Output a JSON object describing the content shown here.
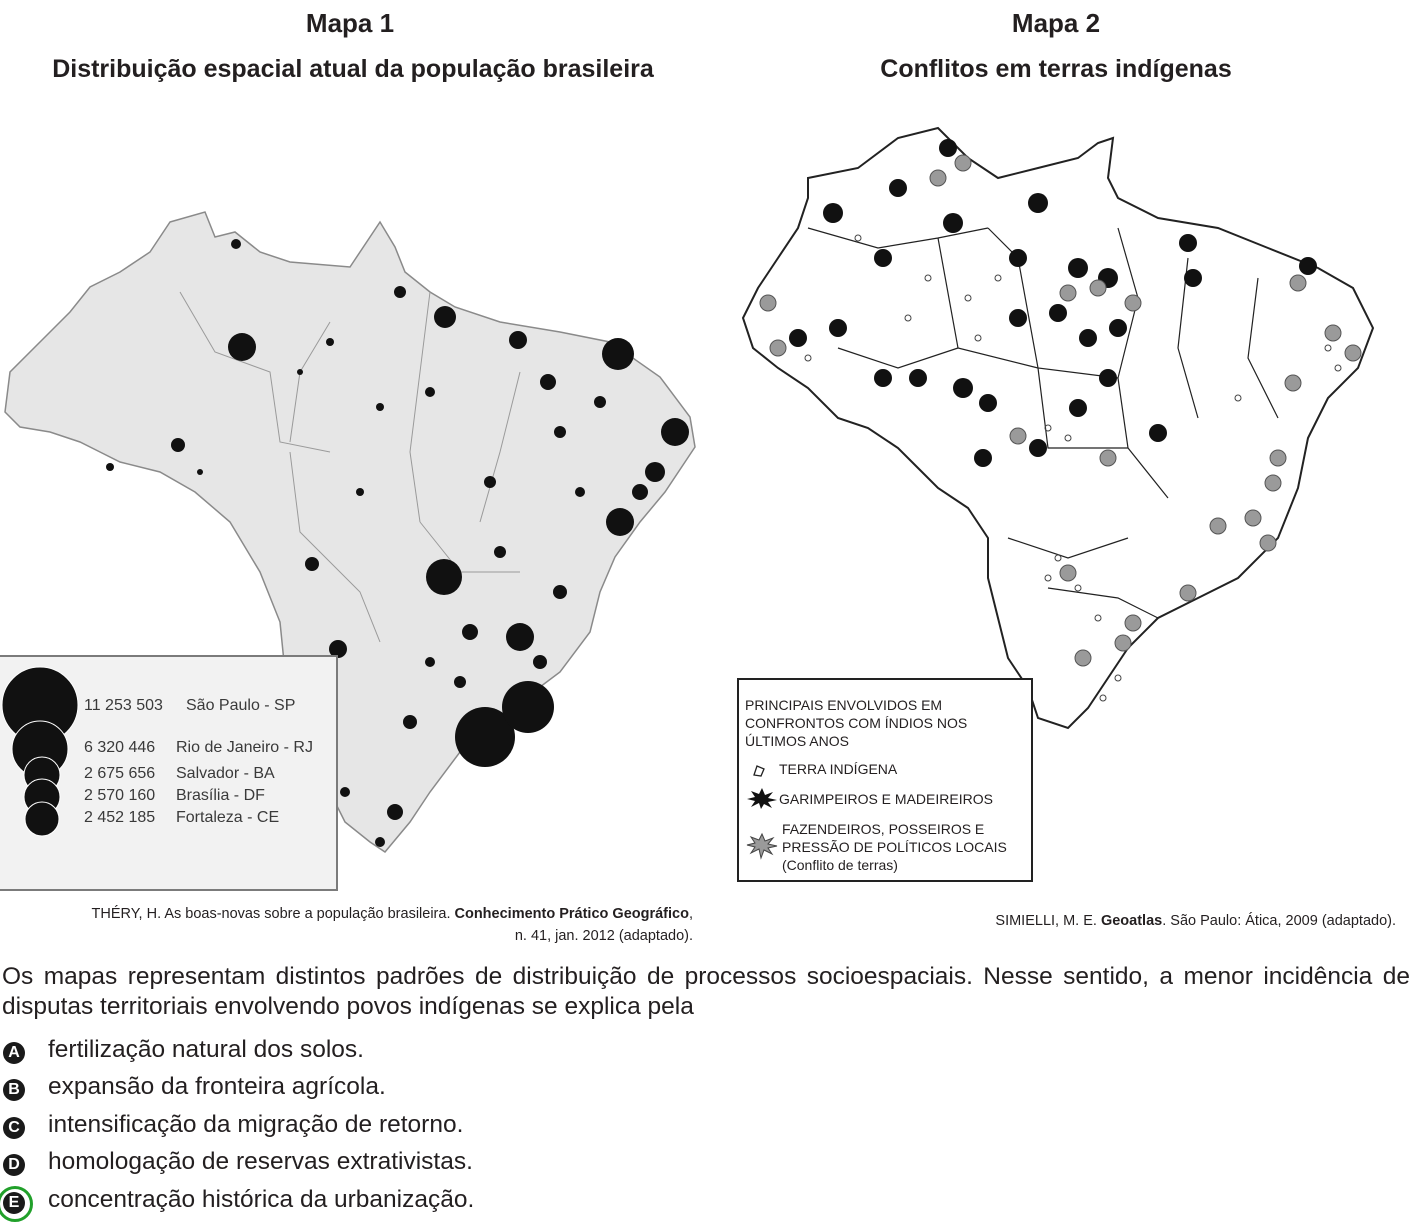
{
  "map1": {
    "title": "Mapa 1",
    "subtitle": "Distribuição espacial atual da população brasileira",
    "legend": [
      {
        "value": "11 253 503",
        "city": "São Paulo - SP"
      },
      {
        "value": "6 320 446",
        "city": "Rio de Janeiro - RJ"
      },
      {
        "value": "2 675 656",
        "city": "Salvador - BA"
      },
      {
        "value": "2 570 160",
        "city": "Brasília - DF"
      },
      {
        "value": "2 452 185",
        "city": "Fortaleza - CE"
      }
    ],
    "source_plain": "THÉRY, H. As boas-novas sobre a população brasileira. ",
    "source_bold": "Conhecimento Prático Geográfico",
    "source_end": ", n. 41, jan. 2012 (adaptado)."
  },
  "map2": {
    "title": "Mapa 2",
    "subtitle": "Conflitos em terras indígenas",
    "legend_title": "PRINCIPAIS ENVOLVIDOS EM CONFRONTOS COM ÍNDIOS NOS ÚLTIMOS ANOS",
    "legend_items": [
      "TERRA INDÍGENA",
      "GARIMPEIROS E MADEIREIROS",
      "FAZENDEIROS, POSSEIROS E PRESSÃO DE POLÍTICOS LOCAIS",
      "(Conflito de terras)"
    ],
    "source_plain": "SIMIELLI, M. E. ",
    "source_bold": "Geoatlas",
    "source_end": ". São Paulo: Ática, 2009 (adaptado)."
  },
  "question": "Os mapas representam distintos padrões de distribuição de processos socioespaciais. Nesse sentido, a menor incidência de disputas territoriais envolvendo povos indígenas se explica pela",
  "options": [
    {
      "letter": "A",
      "text": "fertilização natural dos solos."
    },
    {
      "letter": "B",
      "text": "expansão da fronteira agrícola."
    },
    {
      "letter": "C",
      "text": "intensificação da migração de retorno."
    },
    {
      "letter": "D",
      "text": "homologação de reservas extrativistas."
    },
    {
      "letter": "E",
      "text": "concentração histórica da urbanização."
    }
  ],
  "colors": {
    "correct_ring": "#21a02a",
    "map_fill": "#e6e6e6"
  }
}
